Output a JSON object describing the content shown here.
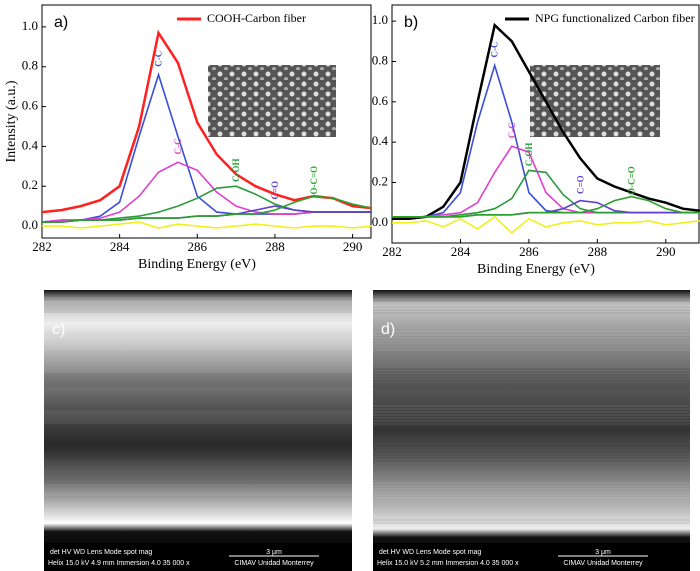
{
  "chart_data": [
    {
      "type": "line",
      "panel": "a)",
      "x_label": "Binding Energy (eV)",
      "y_label": "Intensity (a.u.)",
      "xlim": [
        282,
        290.5
      ],
      "xticks": [
        282,
        284,
        286,
        288,
        290
      ],
      "ylim": [
        -0.06,
        1.11
      ],
      "yticks": [
        {
          "value": 0,
          "label": "0.0"
        },
        0.2,
        0.4,
        0.6,
        0.8,
        {
          "value": 1,
          "label": "1.0"
        }
      ],
      "grid": false,
      "legend": "upper right",
      "x": [
        282,
        282.5,
        283,
        283.5,
        284,
        284.5,
        285,
        285.5,
        286,
        286.5,
        287,
        287.5,
        288,
        288.5,
        289,
        289.5,
        290,
        290.5
      ],
      "series": [
        {
          "name": "COOH-Carbon fiber",
          "color": "#ff2020",
          "values": [
            0.07,
            0.08,
            0.1,
            0.13,
            0.2,
            0.5,
            0.97,
            0.82,
            0.52,
            0.36,
            0.26,
            0.2,
            0.16,
            0.13,
            0.15,
            0.14,
            0.1,
            0.09
          ]
        },
        {
          "label": "C-C",
          "color": "#3a4fd8",
          "values": [
            0.02,
            0.03,
            0.03,
            0.05,
            0.12,
            0.45,
            0.76,
            0.45,
            0.15,
            0.07,
            0.06,
            0.06,
            0.06,
            0.06,
            0.07,
            0.07,
            0.07,
            0.07
          ]
        },
        {
          "label": "C-C",
          "color": "#e040d0",
          "values": [
            0.02,
            0.03,
            0.03,
            0.04,
            0.07,
            0.15,
            0.27,
            0.32,
            0.28,
            0.17,
            0.1,
            0.07,
            0.06,
            0.06,
            0.07,
            0.07,
            0.07,
            0.07
          ]
        },
        {
          "label": "C-OH",
          "color": "#2a9a3a",
          "values": [
            0.02,
            0.02,
            0.03,
            0.03,
            0.04,
            0.05,
            0.07,
            0.1,
            0.14,
            0.19,
            0.2,
            0.16,
            0.11,
            0.08,
            0.07,
            0.07,
            0.07,
            0.07
          ]
        },
        {
          "label": "C=O",
          "color": "#6040c8",
          "values": [
            0.02,
            0.02,
            0.03,
            0.03,
            0.03,
            0.04,
            0.04,
            0.04,
            0.05,
            0.05,
            0.06,
            0.08,
            0.1,
            0.08,
            0.07,
            0.07,
            0.07,
            0.07
          ]
        },
        {
          "label": "O-C=O",
          "color": "#2ca02c",
          "values": [
            0.02,
            0.02,
            0.03,
            0.03,
            0.03,
            0.04,
            0.04,
            0.04,
            0.05,
            0.05,
            0.06,
            0.06,
            0.08,
            0.12,
            0.15,
            0.14,
            0.11,
            0.09
          ]
        },
        {
          "color": "#f0f020",
          "values": [
            0.0,
            0.0,
            -0.01,
            0.0,
            0.01,
            0.02,
            -0.01,
            0.01,
            0.0,
            -0.01,
            0.0,
            0.01,
            0.0,
            -0.01,
            0.0,
            0.0,
            -0.01,
            0.0
          ]
        }
      ]
    },
    {
      "type": "line",
      "panel": "b)",
      "x_label": "Binding Energy (eV)",
      "xlim": [
        282,
        291
      ],
      "xticks": [
        282,
        284,
        286,
        288,
        290
      ],
      "ylim": [
        -0.1,
        1.08
      ],
      "yticks": [
        {
          "value": 0,
          "label": "0.0"
        },
        0.2,
        0.4,
        0.6,
        0.8,
        {
          "value": 1,
          "label": "1.0"
        }
      ],
      "grid": false,
      "legend": "upper right",
      "x": [
        282,
        282.5,
        283,
        283.5,
        284,
        284.5,
        285,
        285.5,
        286,
        286.5,
        287,
        287.5,
        288,
        288.5,
        289,
        289.5,
        290,
        290.5,
        291
      ],
      "series": [
        {
          "name": "NPG functionalized Carbon fiber",
          "color": "#000000",
          "values": [
            0.02,
            0.02,
            0.03,
            0.08,
            0.2,
            0.6,
            0.98,
            0.9,
            0.75,
            0.6,
            0.45,
            0.32,
            0.22,
            0.18,
            0.15,
            0.12,
            0.1,
            0.07,
            0.06
          ]
        },
        {
          "label": "C-C",
          "color": "#3a4fd8",
          "values": [
            0.03,
            0.03,
            0.03,
            0.05,
            0.15,
            0.5,
            0.78,
            0.5,
            0.15,
            0.06,
            0.05,
            0.05,
            0.05,
            0.05,
            0.05,
            0.05,
            0.05,
            0.05,
            0.05
          ]
        },
        {
          "label": "C-C",
          "color": "#e040d0",
          "values": [
            0.03,
            0.03,
            0.03,
            0.04,
            0.05,
            0.1,
            0.25,
            0.38,
            0.35,
            0.15,
            0.07,
            0.05,
            0.05,
            0.05,
            0.05,
            0.05,
            0.05,
            0.05,
            0.05
          ]
        },
        {
          "label": "C-OH",
          "color": "#2a9a3a",
          "values": [
            0.03,
            0.03,
            0.03,
            0.03,
            0.04,
            0.05,
            0.07,
            0.12,
            0.26,
            0.25,
            0.14,
            0.07,
            0.05,
            0.05,
            0.05,
            0.05,
            0.05,
            0.05,
            0.05
          ]
        },
        {
          "label": "C=O",
          "color": "#6040c8",
          "values": [
            0.03,
            0.03,
            0.03,
            0.03,
            0.03,
            0.04,
            0.04,
            0.04,
            0.05,
            0.05,
            0.07,
            0.11,
            0.1,
            0.06,
            0.05,
            0.05,
            0.05,
            0.05,
            0.05
          ]
        },
        {
          "label": "O-C=O",
          "color": "#2ca02c",
          "values": [
            0.03,
            0.03,
            0.03,
            0.03,
            0.03,
            0.04,
            0.04,
            0.04,
            0.05,
            0.05,
            0.05,
            0.05,
            0.07,
            0.11,
            0.13,
            0.11,
            0.07,
            0.05,
            0.05
          ]
        },
        {
          "color": "#f0f020",
          "values": [
            0.0,
            0.0,
            0.01,
            -0.02,
            0.02,
            -0.03,
            0.03,
            -0.05,
            0.02,
            -0.02,
            0.0,
            0.01,
            -0.01,
            0.0,
            0.0,
            0.01,
            -0.01,
            0.0,
            0.01
          ]
        }
      ]
    }
  ],
  "images": [
    {
      "label": "c)",
      "info_header": "det   HV    WD   Lens Mode  spot   mag",
      "info_values": "Helix 15.0 kV 4.9 mm Immersion  4.0  35 000 x",
      "scale": "3 μm",
      "institution": "CIMAV  Unidad Monterrey"
    },
    {
      "label": "d)",
      "info_header": "det   HV    WD   Lens Mode  spot   mag",
      "info_values": "Helix 15.0 kV 5.2 mm Immersion  4.0  35 000 x",
      "scale": "3 μm",
      "institution": "CIMAV  Unidad Monterrey"
    }
  ]
}
